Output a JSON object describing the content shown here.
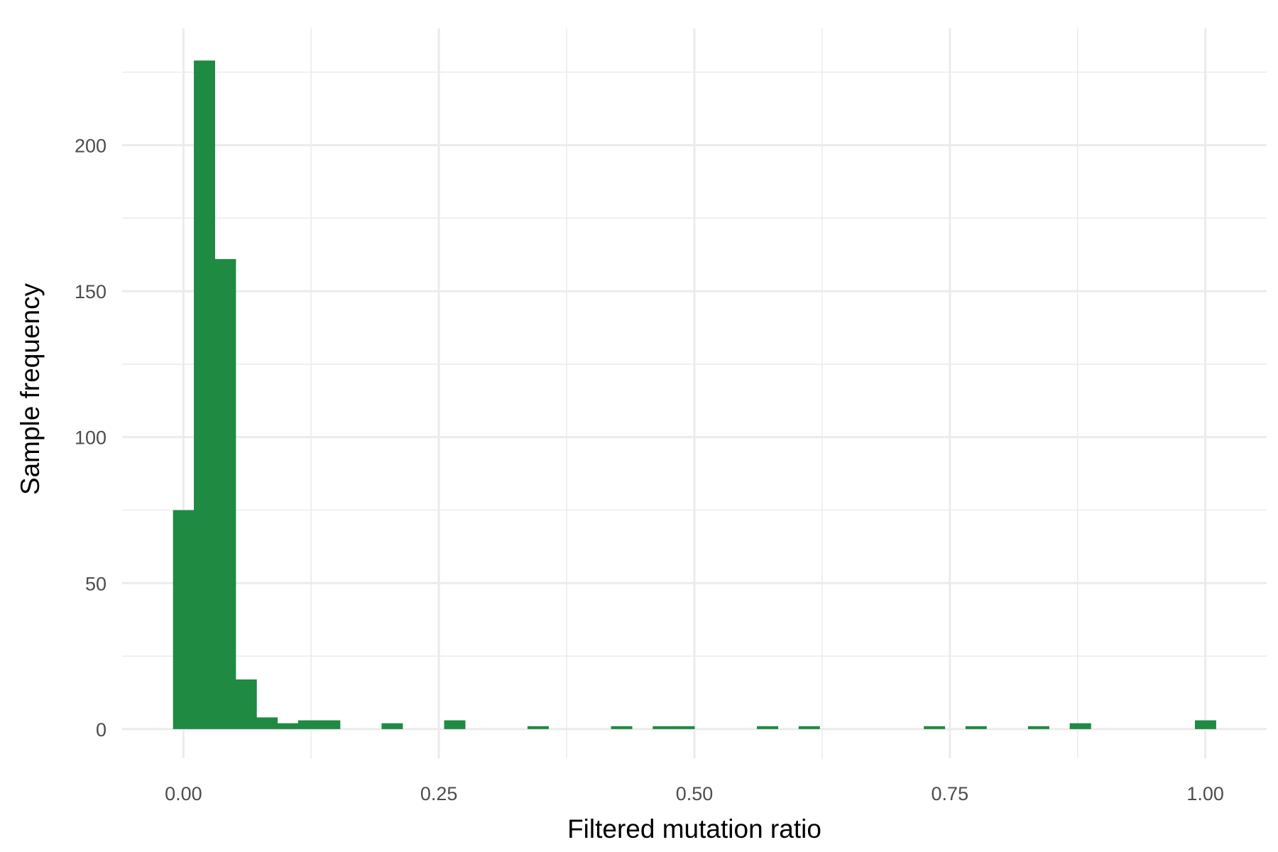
{
  "chart_data": {
    "type": "bar",
    "subtype": "histogram",
    "xlabel": "Filtered mutation ratio",
    "ylabel": "Sample frequency",
    "xlim": [
      -0.06,
      1.06
    ],
    "ylim": [
      -10,
      240
    ],
    "x_ticks": [
      0,
      0.25,
      0.5,
      0.75,
      1.0
    ],
    "x_tick_labels": [
      "0.00",
      "0.25",
      "0.50",
      "0.75",
      "1.00"
    ],
    "x_minor_ticks": [
      0.125,
      0.375,
      0.625,
      0.875
    ],
    "y_ticks": [
      0,
      50,
      100,
      150,
      200
    ],
    "y_tick_labels": [
      "0",
      "50",
      "100",
      "150",
      "200"
    ],
    "y_minor_ticks": [
      25,
      75,
      125,
      175,
      225
    ],
    "grid": true,
    "bar_color": "#1F8A42",
    "grid_color": "#EBEBEB",
    "bins": [
      {
        "x0": -0.0102,
        "x1": 0.0102,
        "count": 75
      },
      {
        "x0": 0.0102,
        "x1": 0.0306,
        "count": 229
      },
      {
        "x0": 0.0306,
        "x1": 0.051,
        "count": 161
      },
      {
        "x0": 0.051,
        "x1": 0.0714,
        "count": 17
      },
      {
        "x0": 0.0714,
        "x1": 0.0918,
        "count": 4
      },
      {
        "x0": 0.0918,
        "x1": 0.1122,
        "count": 2
      },
      {
        "x0": 0.1122,
        "x1": 0.1327,
        "count": 3
      },
      {
        "x0": 0.1327,
        "x1": 0.1531,
        "count": 3
      },
      {
        "x0": 0.1939,
        "x1": 0.2143,
        "count": 2
      },
      {
        "x0": 0.2551,
        "x1": 0.2755,
        "count": 3
      },
      {
        "x0": 0.3367,
        "x1": 0.3571,
        "count": 1
      },
      {
        "x0": 0.4184,
        "x1": 0.4388,
        "count": 1
      },
      {
        "x0": 0.4592,
        "x1": 0.4796,
        "count": 1
      },
      {
        "x0": 0.4796,
        "x1": 0.5,
        "count": 1
      },
      {
        "x0": 0.5612,
        "x1": 0.5816,
        "count": 1
      },
      {
        "x0": 0.602,
        "x1": 0.6224,
        "count": 1
      },
      {
        "x0": 0.7245,
        "x1": 0.7449,
        "count": 1
      },
      {
        "x0": 0.7653,
        "x1": 0.7857,
        "count": 1
      },
      {
        "x0": 0.8265,
        "x1": 0.8469,
        "count": 1
      },
      {
        "x0": 0.8673,
        "x1": 0.8878,
        "count": 2
      },
      {
        "x0": 0.9898,
        "x1": 1.0102,
        "count": 3
      }
    ]
  }
}
